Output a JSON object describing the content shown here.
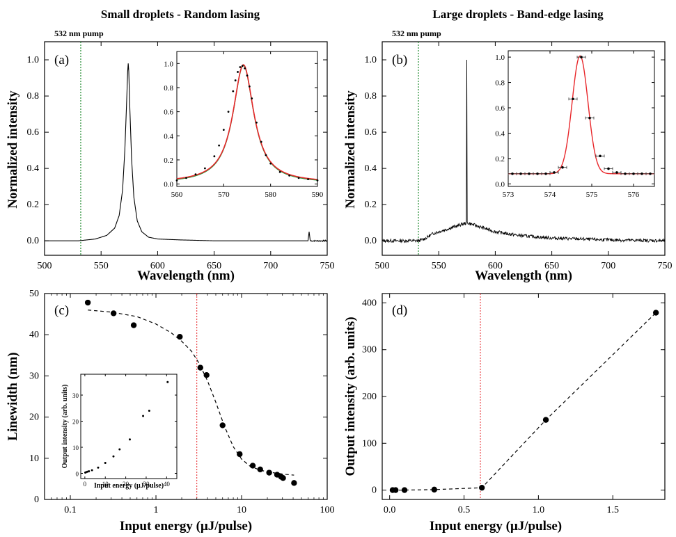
{
  "titles": {
    "left": "Small droplets - Random lasing",
    "right": "Large droplets - Band-edge lasing"
  },
  "pump_label": "532 nm pump",
  "colors": {
    "trace": "#000000",
    "fit": "#e8262a",
    "green_fit": "#1f9a3a",
    "pump_line": "#1e8a2e",
    "threshold_line": "#e8262a"
  },
  "chart_data": [
    {
      "id": "a",
      "type": "line",
      "panel_label": "(a)",
      "xlabel": "Wavelength (nm)",
      "ylabel": "Normalized intensity",
      "xlim": [
        500,
        750
      ],
      "ylim": [
        -0.08,
        1.1
      ],
      "xticks": [
        "500",
        "550",
        "600",
        "650",
        "700",
        "750"
      ],
      "yticks": [
        "0.0",
        "0.2",
        "0.4",
        "0.6",
        "0.8",
        "1.0"
      ],
      "pump_wavelength": 532,
      "spectrum": {
        "peak_center": 574,
        "peak_fwhm": 4.6,
        "peak_height": 0.98,
        "x": [
          500,
          530,
          545,
          555,
          562,
          566,
          569,
          571,
          572.5,
          573.5,
          574,
          574.5,
          575.5,
          577,
          579,
          582,
          586,
          592,
          600,
          620,
          650,
          700,
          733,
          734,
          735,
          750
        ],
        "y": [
          0,
          0,
          0.01,
          0.03,
          0.07,
          0.14,
          0.28,
          0.5,
          0.75,
          0.93,
          0.98,
          0.93,
          0.72,
          0.45,
          0.24,
          0.11,
          0.05,
          0.02,
          0.01,
          0.005,
          0,
          0,
          0,
          0.05,
          0,
          0
        ]
      },
      "inset": {
        "xlim": [
          560,
          590
        ],
        "ylim": [
          -0.02,
          1.1
        ],
        "xticks": [
          "560",
          "570",
          "580",
          "590"
        ],
        "yticks": [
          "0.0",
          "0.2",
          "0.4",
          "0.6",
          "0.8",
          "1.0"
        ],
        "points": {
          "x": [
            560,
            562,
            564,
            566,
            568,
            569,
            570,
            571,
            572,
            572.5,
            573,
            573.5,
            574,
            574.5,
            575,
            575.5,
            576,
            577,
            578,
            579,
            580,
            582,
            584,
            586,
            588,
            590
          ],
          "y": [
            0.03,
            0.05,
            0.08,
            0.13,
            0.23,
            0.32,
            0.45,
            0.6,
            0.77,
            0.86,
            0.93,
            0.97,
            0.98,
            0.96,
            0.9,
            0.81,
            0.71,
            0.51,
            0.35,
            0.24,
            0.17,
            0.1,
            0.07,
            0.05,
            0.04,
            0.03
          ]
        },
        "fit_center": 574.2,
        "fit_fwhm": 5.4,
        "fit_height": 0.98,
        "fit_offset": 0.01
      }
    },
    {
      "id": "b",
      "type": "line",
      "panel_label": "(b)",
      "xlabel": "Wavelength (nm)",
      "ylabel": "Normalized intensity",
      "xlim": [
        500,
        750
      ],
      "ylim": [
        -0.08,
        1.1
      ],
      "xticks": [
        "500",
        "550",
        "600",
        "650",
        "700",
        "750"
      ],
      "yticks": [
        "0.0",
        "0.2",
        "0.4",
        "0.6",
        "0.8",
        "1.0"
      ],
      "pump_wavelength": 532,
      "spectrum": {
        "peak_center": 574.7,
        "peak_height": 1.0,
        "x": [
          500,
          532,
          537,
          540,
          545,
          550,
          560,
          570,
          575,
          580,
          590,
          600,
          620,
          650,
          700,
          750
        ],
        "y": [
          0,
          0,
          0.01,
          0.02,
          0.04,
          0.05,
          0.07,
          0.09,
          0.1,
          0.09,
          0.07,
          0.05,
          0.03,
          0.015,
          0.005,
          0
        ]
      },
      "inset": {
        "xlim": [
          573,
          576.5
        ],
        "ylim": [
          -0.02,
          1.05
        ],
        "xticks": [
          "573",
          "574",
          "575",
          "576"
        ],
        "yticks": [
          "0.0",
          "0.2",
          "0.4",
          "0.6",
          "0.8",
          "1.0"
        ],
        "points": {
          "x": [
            573.1,
            573.3,
            573.5,
            573.7,
            573.9,
            574.1,
            574.3,
            574.55,
            574.75,
            574.95,
            575.2,
            575.4,
            575.6,
            575.8,
            576.0,
            576.2,
            576.4
          ],
          "y": [
            0.08,
            0.08,
            0.08,
            0.08,
            0.08,
            0.09,
            0.13,
            0.67,
            1.0,
            0.52,
            0.22,
            0.12,
            0.09,
            0.08,
            0.08,
            0.08,
            0.08
          ],
          "xerr": [
            0.1,
            0.1,
            0.1,
            0.1,
            0.1,
            0.1,
            0.1,
            0.1,
            0.1,
            0.1,
            0.1,
            0.1,
            0.1,
            0.1,
            0.1,
            0.1,
            0.1
          ]
        },
        "fit_center": 574.72,
        "fit_sigma": 0.19,
        "fit_height": 0.93,
        "fit_offset": 0.08
      }
    },
    {
      "id": "c",
      "type": "scatter",
      "panel_label": "(c)",
      "xlabel": "Input energy (μJ/pulse)",
      "ylabel": "Linewidth (nm)",
      "xscale": "log",
      "xlim": [
        0.05,
        100
      ],
      "ylim": [
        0,
        50
      ],
      "xticks": [
        0.1,
        1,
        10,
        100
      ],
      "xtick_labels": [
        "0.1",
        "1",
        "10",
        "100"
      ],
      "yticks": [
        "0",
        "10",
        "20",
        "30",
        "40",
        "50"
      ],
      "threshold": 3,
      "points": {
        "x": [
          0.16,
          0.32,
          0.55,
          1.9,
          3.3,
          3.9,
          6.0,
          9.5,
          13.5,
          16.5,
          21.0,
          26.0,
          29.0,
          30.5,
          41.0
        ],
        "y": [
          47.8,
          45.2,
          42.3,
          39.5,
          32.0,
          30.2,
          18.0,
          11.0,
          8.2,
          7.3,
          6.5,
          6.0,
          5.5,
          5.2,
          4.0
        ]
      },
      "fit": {
        "x": [
          0.16,
          0.3,
          0.6,
          1.0,
          1.5,
          2.0,
          2.6,
          3.2,
          4.0,
          5.0,
          6.3,
          8.0,
          10.0,
          12.5,
          16.0,
          20.0,
          25.0,
          32.0,
          41.0
        ],
        "y": [
          46.0,
          45.5,
          44.4,
          42.6,
          40.5,
          38.4,
          36.0,
          33.0,
          28.8,
          23.6,
          17.8,
          12.8,
          9.8,
          8.1,
          7.2,
          6.7,
          6.4,
          6.1,
          5.9
        ]
      },
      "inset": {
        "xlabel": "Input energy (μJ/pulse)",
        "ylabel": "Output intensity (arb. units)",
        "xlim": [
          -2,
          45
        ],
        "ylim": [
          -2,
          38
        ],
        "xticks": [
          "0",
          "10",
          "20",
          "30",
          "40"
        ],
        "yticks": [
          "0",
          "10",
          "20",
          "30"
        ],
        "points": {
          "x": [
            0.2,
            0.5,
            1.2,
            2.0,
            3.5,
            6.5,
            10.0,
            14.0,
            17.0,
            22.0,
            28.5,
            31.5,
            40.5
          ],
          "y": [
            0.3,
            0.4,
            0.6,
            0.8,
            1.2,
            2.2,
            4.0,
            6.5,
            9.2,
            13.0,
            22.0,
            24.0,
            35.0
          ]
        }
      }
    },
    {
      "id": "d",
      "type": "scatter",
      "panel_label": "(d)",
      "xlabel": "Input energy (μJ/pulse)",
      "ylabel": "Output intensity (arb. units)",
      "xlim": [
        -0.05,
        1.85
      ],
      "ylim": [
        -20,
        420
      ],
      "xticks": [
        0,
        0.5,
        1.0,
        1.5
      ],
      "xtick_labels": [
        "0.0",
        "0.5",
        "1.0",
        "1.5"
      ],
      "yticks": [
        "0",
        "100",
        "200",
        "300",
        "400"
      ],
      "threshold": 0.61,
      "points": {
        "x": [
          0.02,
          0.04,
          0.1,
          0.3,
          0.62,
          1.05,
          1.79
        ],
        "y": [
          0,
          0,
          0,
          1,
          5,
          150,
          379
        ]
      }
    }
  ]
}
